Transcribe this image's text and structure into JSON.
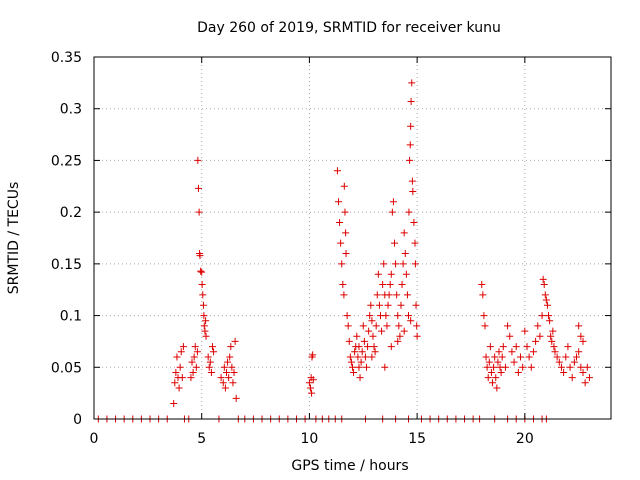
{
  "chart_data": {
    "type": "scatter",
    "title": "Day 260 of 2019, SRMTID for receiver kunu",
    "xlabel": "GPS time / hours",
    "ylabel": "SRMTID / TECUs",
    "xlim": [
      0,
      24
    ],
    "ylim": [
      0,
      0.35
    ],
    "x_ticks": [
      0,
      5,
      10,
      15,
      20
    ],
    "y_ticks": [
      0,
      0.05,
      0.1,
      0.15,
      0.2,
      0.25,
      0.3,
      0.35
    ],
    "x_tick_labels": [
      "0",
      "5",
      "10",
      "15",
      "20"
    ],
    "y_tick_labels": [
      "0",
      "0.05",
      "0.1",
      "0.15",
      "0.2",
      "0.25",
      "0.3",
      "0.35"
    ],
    "grid": true,
    "marker": "+",
    "color": "#dd0000",
    "series": [
      {
        "name": "SRMTID",
        "points": [
          [
            3.7,
            0.015
          ],
          [
            3.75,
            0.035
          ],
          [
            3.8,
            0.045
          ],
          [
            3.85,
            0.06
          ],
          [
            3.9,
            0.04
          ],
          [
            3.95,
            0.03
          ],
          [
            4.0,
            0.05
          ],
          [
            4.05,
            0.065
          ],
          [
            4.1,
            0.04
          ],
          [
            4.15,
            0.07
          ],
          [
            4.5,
            0.04
          ],
          [
            4.55,
            0.055
          ],
          [
            4.6,
            0.045
          ],
          [
            4.65,
            0.06
          ],
          [
            4.7,
            0.07
          ],
          [
            4.75,
            0.05
          ],
          [
            4.8,
            0.065
          ],
          [
            4.82,
            0.25
          ],
          [
            4.85,
            0.223
          ],
          [
            4.88,
            0.2
          ],
          [
            4.9,
            0.16
          ],
          [
            4.92,
            0.158
          ],
          [
            4.95,
            0.143
          ],
          [
            5.0,
            0.142
          ],
          [
            5.02,
            0.13
          ],
          [
            5.05,
            0.12
          ],
          [
            5.08,
            0.11
          ],
          [
            5.1,
            0.1
          ],
          [
            5.12,
            0.09
          ],
          [
            5.15,
            0.085
          ],
          [
            5.18,
            0.095
          ],
          [
            5.2,
            0.08
          ],
          [
            5.3,
            0.06
          ],
          [
            5.35,
            0.05
          ],
          [
            5.4,
            0.055
          ],
          [
            5.45,
            0.045
          ],
          [
            5.5,
            0.07
          ],
          [
            5.55,
            0.065
          ],
          [
            5.9,
            0.04
          ],
          [
            6.0,
            0.035
          ],
          [
            6.05,
            0.05
          ],
          [
            6.1,
            0.03
          ],
          [
            6.15,
            0.045
          ],
          [
            6.2,
            0.055
          ],
          [
            6.25,
            0.04
          ],
          [
            6.3,
            0.06
          ],
          [
            6.35,
            0.07
          ],
          [
            6.4,
            0.05
          ],
          [
            6.45,
            0.035
          ],
          [
            6.5,
            0.045
          ],
          [
            6.55,
            0.075
          ],
          [
            6.6,
            0.02
          ],
          [
            10.0,
            0.035
          ],
          [
            10.05,
            0.03
          ],
          [
            10.08,
            0.04
          ],
          [
            10.1,
            0.025
          ],
          [
            10.12,
            0.06
          ],
          [
            10.15,
            0.062
          ],
          [
            10.18,
            0.038
          ],
          [
            11.3,
            0.24
          ],
          [
            11.35,
            0.21
          ],
          [
            11.4,
            0.19
          ],
          [
            11.45,
            0.17
          ],
          [
            11.5,
            0.15
          ],
          [
            11.55,
            0.13
          ],
          [
            11.6,
            0.12
          ],
          [
            11.62,
            0.225
          ],
          [
            11.65,
            0.2
          ],
          [
            11.68,
            0.18
          ],
          [
            11.7,
            0.16
          ],
          [
            11.75,
            0.1
          ],
          [
            11.8,
            0.09
          ],
          [
            11.85,
            0.075
          ],
          [
            11.9,
            0.06
          ],
          [
            11.95,
            0.055
          ],
          [
            12.0,
            0.05
          ],
          [
            12.05,
            0.045
          ],
          [
            12.1,
            0.065
          ],
          [
            12.15,
            0.07
          ],
          [
            12.2,
            0.08
          ],
          [
            12.25,
            0.06
          ],
          [
            12.3,
            0.05
          ],
          [
            12.35,
            0.04
          ],
          [
            12.4,
            0.055
          ],
          [
            12.45,
            0.065
          ],
          [
            12.5,
            0.09
          ],
          [
            12.55,
            0.075
          ],
          [
            12.6,
            0.06
          ],
          [
            12.65,
            0.05
          ],
          [
            12.7,
            0.07
          ],
          [
            12.75,
            0.085
          ],
          [
            12.8,
            0.1
          ],
          [
            12.85,
            0.11
          ],
          [
            12.9,
            0.095
          ],
          [
            12.95,
            0.08
          ],
          [
            13.0,
            0.07
          ],
          [
            13.05,
            0.065
          ],
          [
            13.1,
            0.09
          ],
          [
            13.15,
            0.12
          ],
          [
            13.2,
            0.14
          ],
          [
            13.25,
            0.11
          ],
          [
            13.3,
            0.1
          ],
          [
            13.35,
            0.085
          ],
          [
            13.4,
            0.13
          ],
          [
            13.45,
            0.15
          ],
          [
            13.5,
            0.12
          ],
          [
            13.55,
            0.1
          ],
          [
            13.6,
            0.09
          ],
          [
            13.65,
            0.11
          ],
          [
            13.7,
            0.12
          ],
          [
            13.75,
            0.13
          ],
          [
            13.8,
            0.14
          ],
          [
            13.85,
            0.2
          ],
          [
            13.9,
            0.21
          ],
          [
            13.95,
            0.17
          ],
          [
            14.0,
            0.15
          ],
          [
            14.05,
            0.12
          ],
          [
            14.1,
            0.1
          ],
          [
            14.15,
            0.09
          ],
          [
            14.2,
            0.08
          ],
          [
            14.25,
            0.11
          ],
          [
            14.3,
            0.13
          ],
          [
            14.35,
            0.15
          ],
          [
            14.4,
            0.18
          ],
          [
            14.45,
            0.16
          ],
          [
            14.5,
            0.14
          ],
          [
            14.55,
            0.12
          ],
          [
            14.6,
            0.1
          ],
          [
            14.62,
            0.2
          ],
          [
            14.65,
            0.25
          ],
          [
            14.68,
            0.265
          ],
          [
            14.7,
            0.283
          ],
          [
            14.72,
            0.307
          ],
          [
            14.75,
            0.325
          ],
          [
            14.78,
            0.23
          ],
          [
            14.8,
            0.22
          ],
          [
            14.85,
            0.19
          ],
          [
            14.9,
            0.17
          ],
          [
            14.92,
            0.15
          ],
          [
            14.95,
            0.11
          ],
          [
            14.98,
            0.09
          ],
          [
            15.0,
            0.08
          ],
          [
            12.3,
            0.07
          ],
          [
            12.9,
            0.06
          ],
          [
            13.5,
            0.05
          ],
          [
            13.8,
            0.07
          ],
          [
            14.1,
            0.075
          ],
          [
            14.4,
            0.085
          ],
          [
            14.7,
            0.095
          ],
          [
            18.0,
            0.13
          ],
          [
            18.05,
            0.12
          ],
          [
            18.1,
            0.1
          ],
          [
            18.15,
            0.09
          ],
          [
            18.2,
            0.06
          ],
          [
            18.25,
            0.05
          ],
          [
            18.3,
            0.04
          ],
          [
            18.35,
            0.055
          ],
          [
            18.4,
            0.07
          ],
          [
            18.45,
            0.045
          ],
          [
            18.5,
            0.035
          ],
          [
            18.55,
            0.05
          ],
          [
            18.6,
            0.06
          ],
          [
            18.65,
            0.04
          ],
          [
            18.7,
            0.03
          ],
          [
            18.75,
            0.055
          ],
          [
            18.8,
            0.065
          ],
          [
            18.85,
            0.05
          ],
          [
            18.9,
            0.045
          ],
          [
            18.95,
            0.06
          ],
          [
            19.0,
            0.07
          ],
          [
            19.1,
            0.05
          ],
          [
            19.2,
            0.09
          ],
          [
            19.3,
            0.08
          ],
          [
            19.4,
            0.065
          ],
          [
            19.5,
            0.055
          ],
          [
            19.6,
            0.07
          ],
          [
            19.7,
            0.045
          ],
          [
            19.8,
            0.06
          ],
          [
            19.9,
            0.05
          ],
          [
            20.0,
            0.085
          ],
          [
            20.1,
            0.07
          ],
          [
            20.2,
            0.06
          ],
          [
            20.3,
            0.05
          ],
          [
            20.4,
            0.065
          ],
          [
            20.5,
            0.075
          ],
          [
            20.6,
            0.09
          ],
          [
            20.7,
            0.08
          ],
          [
            20.8,
            0.1
          ],
          [
            20.85,
            0.135
          ],
          [
            20.9,
            0.13
          ],
          [
            20.95,
            0.12
          ],
          [
            21.0,
            0.115
          ],
          [
            21.05,
            0.11
          ],
          [
            21.1,
            0.1
          ],
          [
            21.15,
            0.095
          ],
          [
            21.2,
            0.08
          ],
          [
            21.25,
            0.075
          ],
          [
            21.3,
            0.085
          ],
          [
            21.35,
            0.07
          ],
          [
            21.4,
            0.065
          ],
          [
            21.5,
            0.06
          ],
          [
            21.6,
            0.055
          ],
          [
            21.7,
            0.05
          ],
          [
            21.8,
            0.045
          ],
          [
            21.9,
            0.06
          ],
          [
            22.0,
            0.07
          ],
          [
            22.1,
            0.05
          ],
          [
            22.2,
            0.04
          ],
          [
            22.3,
            0.055
          ],
          [
            22.4,
            0.06
          ],
          [
            22.5,
            0.065
          ],
          [
            22.6,
            0.05
          ],
          [
            22.7,
            0.045
          ],
          [
            22.8,
            0.035
          ],
          [
            22.9,
            0.05
          ],
          [
            23.0,
            0.04
          ],
          [
            22.5,
            0.09
          ],
          [
            22.6,
            0.08
          ],
          [
            22.7,
            0.075
          ],
          [
            0.2,
            0
          ],
          [
            0.6,
            0
          ],
          [
            1.0,
            0
          ],
          [
            1.4,
            0
          ],
          [
            1.8,
            0
          ],
          [
            2.2,
            0
          ],
          [
            2.6,
            0
          ],
          [
            3.0,
            0
          ],
          [
            3.4,
            0
          ],
          [
            4.2,
            0
          ],
          [
            4.4,
            0
          ],
          [
            5.8,
            0
          ],
          [
            6.7,
            0
          ],
          [
            7.0,
            0
          ],
          [
            7.4,
            0
          ],
          [
            7.8,
            0
          ],
          [
            8.2,
            0
          ],
          [
            8.6,
            0
          ],
          [
            9.0,
            0
          ],
          [
            9.4,
            0
          ],
          [
            9.8,
            0
          ],
          [
            10.3,
            0
          ],
          [
            10.6,
            0
          ],
          [
            10.9,
            0
          ],
          [
            11.2,
            0
          ],
          [
            11.5,
            0
          ],
          [
            12.6,
            0
          ],
          [
            13.4,
            0
          ],
          [
            14.0,
            0
          ],
          [
            14.6,
            0
          ],
          [
            15.2,
            0
          ],
          [
            15.6,
            0
          ],
          [
            16.0,
            0
          ],
          [
            16.4,
            0
          ],
          [
            16.8,
            0
          ],
          [
            17.2,
            0
          ],
          [
            17.6,
            0
          ],
          [
            17.9,
            0
          ],
          [
            18.6,
            0
          ],
          [
            19.2,
            0
          ],
          [
            19.6,
            0
          ],
          [
            20.0,
            0
          ],
          [
            20.4,
            0
          ],
          [
            20.8,
            0
          ],
          [
            21.0,
            0
          ]
        ]
      }
    ]
  }
}
